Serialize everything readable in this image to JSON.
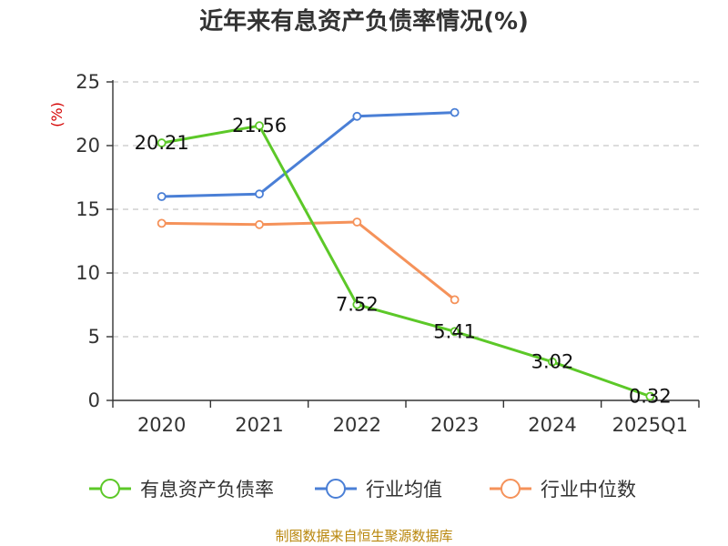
{
  "chart_data": {
    "type": "line",
    "title": "近年来有息资产负债率情况(%)",
    "ylabel": "(%)",
    "ylim": [
      0,
      25
    ],
    "yticks": [
      0,
      5,
      10,
      15,
      20,
      25
    ],
    "categories": [
      "2020",
      "2021",
      "2022",
      "2023",
      "2024",
      "2025Q1"
    ],
    "grid": true,
    "legend_position": "bottom",
    "series": [
      {
        "name": "有息资产负债率",
        "color": "#5cc828",
        "values": [
          20.21,
          21.56,
          7.52,
          5.41,
          3.02,
          0.32
        ],
        "labels": [
          "20.21",
          "21.56",
          "7.52",
          "5.41",
          "3.02",
          "0.32"
        ]
      },
      {
        "name": "行业均值",
        "color": "#4a7fd6",
        "values": [
          16.0,
          16.2,
          22.3,
          22.6,
          null,
          null
        ]
      },
      {
        "name": "行业中位数",
        "color": "#f5925a",
        "values": [
          13.9,
          13.8,
          14.0,
          7.9,
          null,
          null
        ]
      }
    ],
    "source": "制图数据来自恒生聚源数据库"
  }
}
